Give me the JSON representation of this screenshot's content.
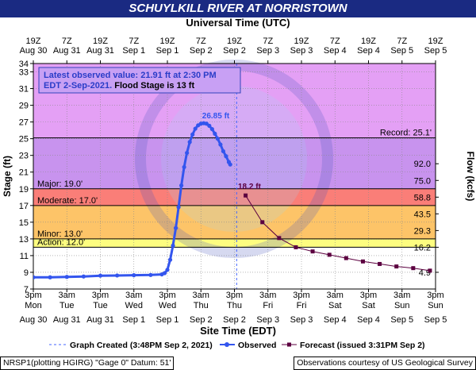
{
  "title": "SCHUYLKILL RIVER AT NORRISTOWN",
  "top_axis_title": "Universal Time (UTC)",
  "bottom_axis_title": "Site Time (EDT)",
  "footer": {
    "left": "NRSP1(plotting HGIRG) \"Gage 0\" Datum: 51'",
    "right": "Observations courtesy of US Geological Survey"
  },
  "colors": {
    "title_bg": "#1a2a82",
    "record": "#e4a0f5",
    "major": "#c893ee",
    "moderate": "#fa7e78",
    "minor": "#fdc468",
    "action": "#fdfd80",
    "normal": "#ffffff",
    "observed": "#3355ee",
    "forecast": "#5c0040",
    "info_text": "#2a3dc8"
  },
  "chart_data": {
    "type": "line",
    "ylabel": "Stage (ft)",
    "y2label": "Flow (kcfs)",
    "ylim": [
      7,
      34
    ],
    "xlim_hours": [
      0,
      144
    ],
    "x_origin": "Aug 30 3pm EDT",
    "y_ticks": [
      7,
      9,
      11,
      13,
      15,
      17,
      19,
      21,
      23,
      25,
      27,
      29,
      31,
      33,
      34
    ],
    "flow_ticks": [
      {
        "stage": 9,
        "label": "4.9"
      },
      {
        "stage": 12,
        "label": "16.2"
      },
      {
        "stage": 14,
        "label": "29.3"
      },
      {
        "stage": 16,
        "label": "43.5"
      },
      {
        "stage": 18,
        "label": "58.8"
      },
      {
        "stage": 20,
        "label": "75.0"
      },
      {
        "stage": 22,
        "label": "92.0"
      }
    ],
    "bottom_ticks": [
      {
        "h": 0,
        "time": "3pm",
        "date": "Mon",
        "sub": "Aug 30"
      },
      {
        "h": 12,
        "time": "3am",
        "date": "Tue",
        "sub": "Aug 31"
      },
      {
        "h": 24,
        "time": "3pm",
        "date": "Tue",
        "sub": "Aug 31"
      },
      {
        "h": 36,
        "time": "3am",
        "date": "Wed",
        "sub": "Sep 1"
      },
      {
        "h": 48,
        "time": "3pm",
        "date": "Wed",
        "sub": "Sep 1"
      },
      {
        "h": 60,
        "time": "3am",
        "date": "Thu",
        "sub": "Sep 2"
      },
      {
        "h": 72,
        "time": "3pm",
        "date": "Thu",
        "sub": "Sep 2"
      },
      {
        "h": 84,
        "time": "3am",
        "date": "Fri",
        "sub": "Sep 3"
      },
      {
        "h": 96,
        "time": "3pm",
        "date": "Fri",
        "sub": "Sep 3"
      },
      {
        "h": 108,
        "time": "3am",
        "date": "Sat",
        "sub": "Sep 4"
      },
      {
        "h": 120,
        "time": "3pm",
        "date": "Sat",
        "sub": "Sep 4"
      },
      {
        "h": 132,
        "time": "3am",
        "date": "Sun",
        "sub": "Sep 5"
      },
      {
        "h": 144,
        "time": "3pm",
        "date": "Sun",
        "sub": "Sep 5"
      }
    ],
    "top_ticks": [
      {
        "h": 0,
        "time": "19Z",
        "date": "Aug 30"
      },
      {
        "h": 12,
        "time": "7Z",
        "date": "Aug 31"
      },
      {
        "h": 24,
        "time": "19Z",
        "date": "Aug 31"
      },
      {
        "h": 36,
        "time": "7Z",
        "date": "Sep 1"
      },
      {
        "h": 48,
        "time": "19Z",
        "date": "Sep 1"
      },
      {
        "h": 60,
        "time": "7Z",
        "date": "Sep 2"
      },
      {
        "h": 72,
        "time": "19Z",
        "date": "Sep 2"
      },
      {
        "h": 84,
        "time": "7Z",
        "date": "Sep 3"
      },
      {
        "h": 96,
        "time": "19Z",
        "date": "Sep 3"
      },
      {
        "h": 108,
        "time": "7Z",
        "date": "Sep 4"
      },
      {
        "h": 120,
        "time": "19Z",
        "date": "Sep 4"
      },
      {
        "h": 132,
        "time": "7Z",
        "date": "Sep 5"
      },
      {
        "h": 144,
        "time": "19Z",
        "date": "Sep 5"
      }
    ],
    "bands": [
      {
        "name": "record",
        "from": 25.1,
        "to": 34,
        "color": "#e4a0f5"
      },
      {
        "name": "major",
        "from": 19,
        "to": 25.1,
        "color": "#c893ee"
      },
      {
        "name": "moderate",
        "from": 17,
        "to": 19,
        "color": "#fa7e78"
      },
      {
        "name": "minor",
        "from": 13,
        "to": 17,
        "color": "#fdc468"
      },
      {
        "name": "action",
        "from": 12,
        "to": 13,
        "color": "#fdfd80"
      },
      {
        "name": "normal",
        "from": 7,
        "to": 12,
        "color": "#ffffff"
      }
    ],
    "thresholds": [
      {
        "label": "Record: 25.1'",
        "value": 25.1,
        "side": "right"
      },
      {
        "label": "Major: 19.0'",
        "value": 19,
        "side": "left"
      },
      {
        "label": "Moderate: 17.0'",
        "value": 17,
        "side": "left"
      },
      {
        "label": "Minor: 13.0'",
        "value": 13,
        "side": "left"
      },
      {
        "label": "Action: 12.0'",
        "value": 12,
        "side": "left"
      }
    ],
    "info_box": {
      "line1": "Latest observed value: 21.91 ft at 2:30 PM",
      "line2a": "EDT 2-Sep-2021.",
      "line2b": " Flood Stage is 13 ft"
    },
    "crest_label": "26.85 ft",
    "forecast_label": "18.2 ft",
    "now_hours": 72.8,
    "observed": {
      "name": "Observed",
      "points": [
        [
          0,
          8.4
        ],
        [
          6,
          8.4
        ],
        [
          12,
          8.45
        ],
        [
          18,
          8.5
        ],
        [
          24,
          8.6
        ],
        [
          30,
          8.62
        ],
        [
          36,
          8.65
        ],
        [
          42,
          8.68
        ],
        [
          46,
          8.75
        ],
        [
          47,
          8.9
        ],
        [
          48,
          9.3
        ],
        [
          49,
          10.5
        ],
        [
          50,
          12.2
        ],
        [
          51,
          14.3
        ],
        [
          52,
          16.8
        ],
        [
          53,
          19.4
        ],
        [
          54,
          21.6
        ],
        [
          55,
          23.3
        ],
        [
          56,
          24.6
        ],
        [
          57,
          25.5
        ],
        [
          58,
          26.2
        ],
        [
          59,
          26.6
        ],
        [
          60,
          26.8
        ],
        [
          61,
          26.85
        ],
        [
          62,
          26.8
        ],
        [
          63,
          26.55
        ],
        [
          64,
          26.15
        ],
        [
          65,
          25.6
        ],
        [
          66,
          25.0
        ],
        [
          67,
          24.3
        ],
        [
          68,
          23.5
        ],
        [
          69,
          22.9
        ],
        [
          70,
          22.2
        ],
        [
          70.5,
          21.91
        ]
      ]
    },
    "forecast": {
      "name": "Forecast",
      "points": [
        [
          76,
          18.2
        ],
        [
          82,
          15.0
        ],
        [
          88,
          13.1
        ],
        [
          94,
          12.0
        ],
        [
          100,
          11.5
        ],
        [
          106,
          11.1
        ],
        [
          112,
          10.7
        ],
        [
          118,
          10.3
        ],
        [
          124,
          10.0
        ],
        [
          130,
          9.7
        ],
        [
          136,
          9.5
        ],
        [
          142,
          9.2
        ]
      ]
    },
    "legend": {
      "created": "Graph Created (3:48PM Sep 2, 2021)",
      "observed": "Observed",
      "forecast": "Forecast (issued 3:31PM Sep 2)"
    }
  }
}
